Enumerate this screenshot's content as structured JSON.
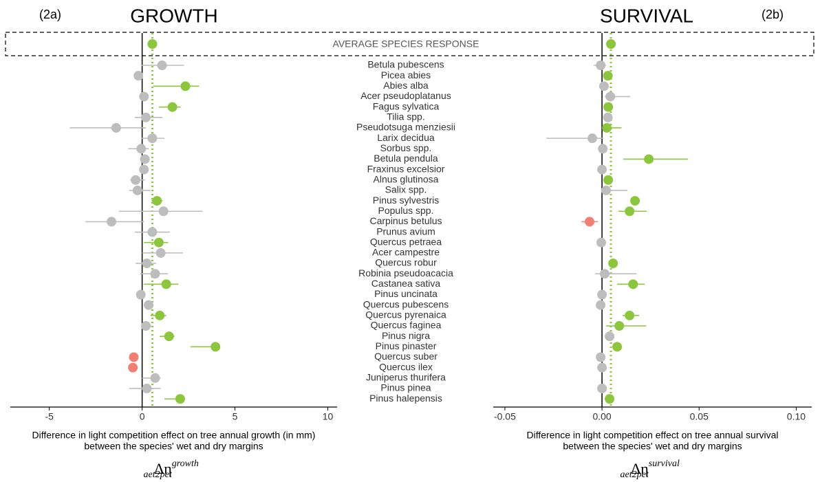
{
  "chart_data": [
    {
      "type": "forest",
      "panel_label": "(2a)",
      "title": "GROWTH",
      "average_label": "AVERAGE SPECIES RESPONSE",
      "average": {
        "value": 0.55,
        "color": "#8cc63e"
      },
      "categories": [
        "Betula pubescens",
        "Picea abies",
        "Abies alba",
        "Acer pseudoplatanus",
        "Fagus sylvatica",
        "Tilia spp.",
        "Pseudotsuga menziesii",
        "Larix decidua",
        "Sorbus spp.",
        "Betula pendula",
        "Fraxinus excelsior",
        "Alnus glutinosa",
        "Salix spp.",
        "Pinus sylvestris",
        "Populus spp.",
        "Carpinus betulus",
        "Prunus avium",
        "Quercus petraea",
        "Acer campestre",
        "Quercus robur",
        "Robinia pseudoacacia",
        "Castanea sativa",
        "Pinus uncinata",
        "Quercus pubescens",
        "Quercus pyrenaica",
        "Quercus faginea",
        "Pinus nigra",
        "Pinus pinaster",
        "Quercus suber",
        "Quercus ilex",
        "Juniperus thurifera",
        "Pinus pinea",
        "Pinus halepensis"
      ],
      "values": [
        1.07,
        -0.2,
        2.33,
        0.1,
        1.63,
        0.2,
        -1.4,
        0.55,
        -0.05,
        0.15,
        0.1,
        -0.35,
        -0.25,
        0.8,
        1.15,
        -1.65,
        0.55,
        0.9,
        1.0,
        0.25,
        0.7,
        1.3,
        -0.07,
        0.35,
        0.95,
        0.2,
        1.45,
        3.95,
        -0.45,
        -0.5,
        0.7,
        0.25,
        2.05
      ],
      "lower": [
        -0.05,
        null,
        0.6,
        null,
        0.9,
        -0.4,
        -3.9,
        -0.05,
        -0.75,
        null,
        null,
        -0.65,
        -0.7,
        0.5,
        -1.25,
        -3.05,
        -0.4,
        0.1,
        0,
        -0.35,
        -0.1,
        0.1,
        null,
        null,
        0.45,
        -0.05,
        0.95,
        2.6,
        null,
        null,
        0,
        -0.7,
        1.2
      ],
      "upper": [
        2.25,
        null,
        3.07,
        null,
        2.07,
        1.1,
        0.2,
        1.2,
        0.35,
        null,
        null,
        0.15,
        0.45,
        1.1,
        3.25,
        0.1,
        1.5,
        1.4,
        2.2,
        0.75,
        1.4,
        1.95,
        null,
        null,
        1.3,
        0.5,
        1.75,
        4.15,
        null,
        null,
        1.0,
        1.0,
        2.3
      ],
      "colors": [
        "#bdbdbd",
        "#bdbdbd",
        "#8cc63e",
        "#bdbdbd",
        "#8cc63e",
        "#bdbdbd",
        "#bdbdbd",
        "#bdbdbd",
        "#bdbdbd",
        "#bdbdbd",
        "#bdbdbd",
        "#bdbdbd",
        "#bdbdbd",
        "#8cc63e",
        "#bdbdbd",
        "#bdbdbd",
        "#bdbdbd",
        "#8cc63e",
        "#bdbdbd",
        "#bdbdbd",
        "#bdbdbd",
        "#8cc63e",
        "#bdbdbd",
        "#bdbdbd",
        "#8cc63e",
        "#bdbdbd",
        "#8cc63e",
        "#8cc63e",
        "#f28072",
        "#f28072",
        "#bdbdbd",
        "#bdbdbd",
        "#8cc63e"
      ],
      "xlim": [
        -7.1,
        10.5
      ],
      "xticks": [
        -5,
        0,
        5,
        10
      ],
      "xlabel": [
        "Difference in light competition effect on tree annual growth (in mm)",
        "between the species' wet and dry margins"
      ],
      "symbol": "Δη",
      "symbol_sup": "growth",
      "symbol_sub": "aet2pet"
    },
    {
      "type": "forest",
      "panel_label": "(2b)",
      "title": "SURVIVAL",
      "average": {
        "value": 0.0046,
        "color": "#8cc63e"
      },
      "values": [
        -0.0007,
        0.003,
        0.001,
        0.0043,
        0.0032,
        0.003,
        0.0025,
        -0.005,
        0.0004,
        0.0241,
        0,
        0.0032,
        0.0021,
        0.017,
        0.0142,
        -0.0064,
        null,
        -0.0004,
        null,
        0.0057,
        0.0014,
        0.016,
        0,
        -0.0007,
        0.0142,
        0.0089,
        0.0039,
        0.0078,
        -0.0007,
        0,
        null,
        0,
        0.0039
      ],
      "lower": [
        -0.0043,
        null,
        null,
        0.0014,
        null,
        null,
        0.0007,
        -0.0287,
        null,
        0.011,
        null,
        null,
        0,
        0.0149,
        0.0085,
        -0.0106,
        null,
        null,
        null,
        null,
        -0.0036,
        0.0078,
        null,
        null,
        0.0106,
        0.0021,
        null,
        0.0057,
        null,
        null,
        null,
        null,
        null
      ],
      "upper": [
        0.0021,
        null,
        null,
        0.0145,
        null,
        null,
        0.01,
        0.0007,
        null,
        0.0443,
        null,
        null,
        0.0131,
        0.0191,
        0.0231,
        -0.0021,
        null,
        null,
        null,
        null,
        0.0177,
        0.022,
        null,
        null,
        0.0191,
        0.0227,
        null,
        0.0103,
        null,
        null,
        null,
        null,
        null
      ],
      "colors": [
        "#bdbdbd",
        "#8cc63e",
        "#bdbdbd",
        "#bdbdbd",
        "#8cc63e",
        "#bdbdbd",
        "#8cc63e",
        "#bdbdbd",
        "#bdbdbd",
        "#8cc63e",
        "#bdbdbd",
        "#8cc63e",
        "#bdbdbd",
        "#8cc63e",
        "#8cc63e",
        "#f28072",
        null,
        "#bdbdbd",
        null,
        "#8cc63e",
        "#bdbdbd",
        "#8cc63e",
        "#bdbdbd",
        "#bdbdbd",
        "#8cc63e",
        "#8cc63e",
        "#bdbdbd",
        "#8cc63e",
        "#bdbdbd",
        "#bdbdbd",
        null,
        "#bdbdbd",
        "#8cc63e"
      ],
      "xlim": [
        -0.056,
        0.108
      ],
      "xticks": [
        -0.05,
        {
          "value": 0,
          "label": "0.00"
        },
        0.05,
        {
          "value": 0.1,
          "label": "0.10"
        }
      ],
      "xlabel": [
        "Difference in light competition effect on tree annual survival",
        "between the species' wet and dry margins"
      ],
      "symbol": "Δη",
      "symbol_sup": "survival",
      "symbol_sub": "aet2pet"
    }
  ]
}
